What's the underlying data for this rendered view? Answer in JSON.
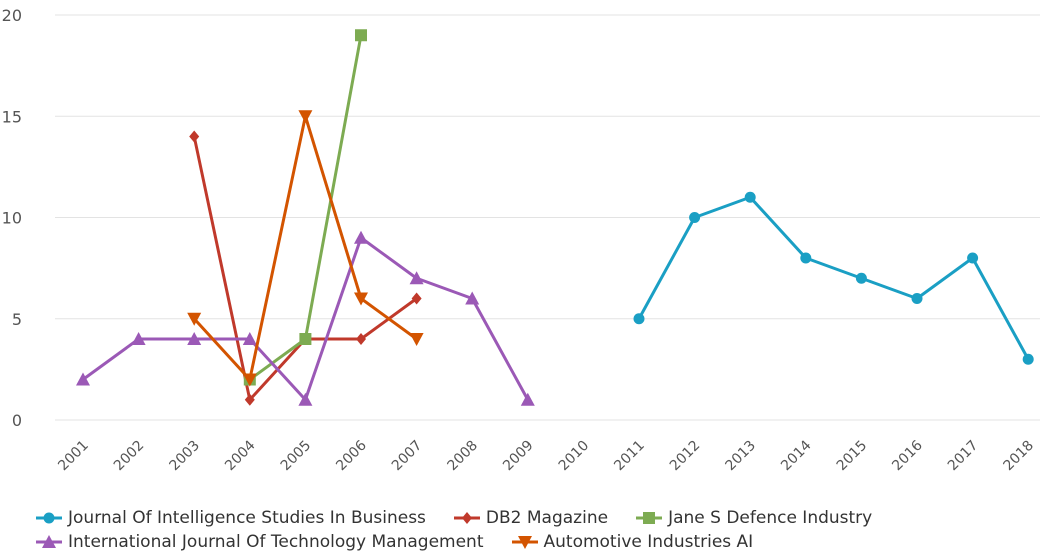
{
  "chart_data": {
    "type": "line",
    "categories": [
      "2001",
      "2002",
      "2003",
      "2004",
      "2005",
      "2006",
      "2007",
      "2008",
      "2009",
      "2010",
      "2011",
      "2012",
      "2013",
      "2014",
      "2015",
      "2016",
      "2017",
      "2018"
    ],
    "ylim": [
      0,
      20
    ],
    "yticks": [
      "0",
      "5",
      "10",
      "15",
      "20"
    ],
    "grid": true,
    "legend": "bottom",
    "series": [
      {
        "name": "Journal Of Intelligence Studies In Business",
        "color": "#1a9fc4",
        "marker": "circle",
        "points": [
          [
            "2011",
            5
          ],
          [
            "2012",
            10
          ],
          [
            "2013",
            11
          ],
          [
            "2014",
            8
          ],
          [
            "2015",
            7
          ],
          [
            "2016",
            6
          ],
          [
            "2017",
            8
          ],
          [
            "2018",
            3
          ]
        ]
      },
      {
        "name": "DB2 Magazine",
        "color": "#c0392b",
        "marker": "diamond",
        "points": [
          [
            "2003",
            14
          ],
          [
            "2004",
            1
          ],
          [
            "2005",
            4
          ],
          [
            "2006",
            4
          ],
          [
            "2007",
            6
          ]
        ]
      },
      {
        "name": "Jane S Defence Industry",
        "color": "#7dab52",
        "marker": "square",
        "points": [
          [
            "2004",
            2
          ],
          [
            "2005",
            4
          ],
          [
            "2006",
            19
          ]
        ]
      },
      {
        "name": "International Journal Of Technology Management",
        "color": "#9b59b6",
        "marker": "triangle-up",
        "points": [
          [
            "2001",
            2
          ],
          [
            "2002",
            4
          ],
          [
            "2003",
            4
          ],
          [
            "2004",
            4
          ],
          [
            "2005",
            1
          ],
          [
            "2006",
            9
          ],
          [
            "2007",
            7
          ],
          [
            "2008",
            6
          ],
          [
            "2009",
            1
          ]
        ]
      },
      {
        "name": "Automotive Industries AI",
        "color": "#d35400",
        "marker": "triangle-down",
        "points": [
          [
            "2003",
            5
          ],
          [
            "2004",
            2
          ],
          [
            "2005",
            15
          ],
          [
            "2006",
            6
          ],
          [
            "2007",
            4
          ]
        ]
      }
    ]
  },
  "legend_rows": [
    [
      0,
      1,
      2
    ],
    [
      3,
      4
    ]
  ]
}
